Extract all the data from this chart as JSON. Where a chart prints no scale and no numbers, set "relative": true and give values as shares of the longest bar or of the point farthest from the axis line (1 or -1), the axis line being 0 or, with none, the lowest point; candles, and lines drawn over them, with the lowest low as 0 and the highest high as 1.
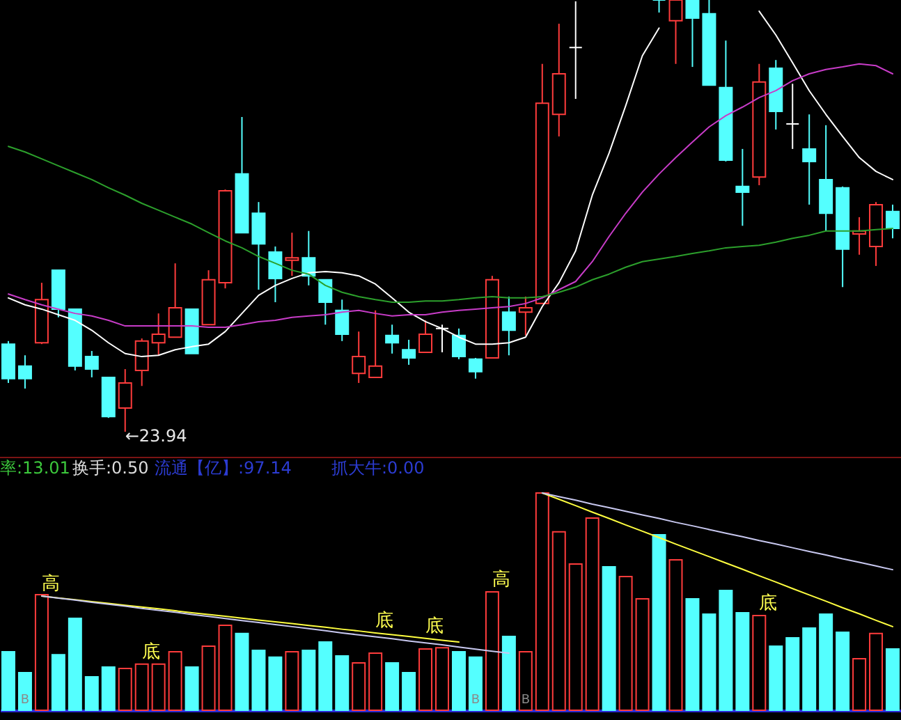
{
  "chart_data": [
    {
      "type": "candlestick",
      "relative": true,
      "categories": [
        null,
        null,
        null,
        null,
        null,
        null,
        null,
        null,
        null,
        null,
        null,
        null,
        null,
        null,
        null,
        null,
        null,
        null,
        null,
        null,
        null,
        null,
        null,
        null,
        null,
        null,
        null,
        null,
        null,
        null,
        null,
        null,
        null,
        null,
        null,
        null,
        null,
        null,
        null,
        null,
        null,
        null,
        null,
        null,
        null,
        null,
        null,
        null,
        null,
        null,
        null,
        null,
        null,
        null
      ],
      "ohlc": [
        [
          0.203,
          0.21,
          0.113,
          0.123
        ],
        [
          0.152,
          0.177,
          0.1,
          0.123
        ],
        [
          0.206,
          0.345,
          0.203,
          0.306
        ],
        [
          0.374,
          0.374,
          0.265,
          0.284
        ],
        [
          0.284,
          0.284,
          0.142,
          0.152
        ],
        [
          0.174,
          0.187,
          0.126,
          0.145
        ],
        [
          0.126,
          0.126,
          0.032,
          0.035
        ],
        [
          0.055,
          0.145,
          0,
          0.113
        ],
        [
          0.142,
          0.216,
          0.106,
          0.21
        ],
        [
          0.206,
          0.274,
          0.177,
          0.226
        ],
        [
          0.219,
          0.39,
          0.219,
          0.287
        ],
        [
          0.284,
          0.284,
          0.181,
          0.181
        ],
        [
          0.248,
          0.374,
          0.248,
          0.352
        ],
        [
          0.345,
          0.561,
          0.332,
          0.558
        ],
        [
          0.597,
          0.729,
          0.461,
          0.461
        ],
        [
          0.506,
          0.532,
          0.329,
          0.435
        ],
        [
          0.416,
          0.429,
          0.3,
          0.355
        ],
        [
          0.397,
          0.461,
          0.361,
          0.403
        ],
        [
          0.403,
          0.465,
          0.339,
          0.361
        ],
        [
          0.352,
          0.352,
          0.248,
          0.3
        ],
        [
          0.281,
          0.306,
          0.21,
          0.226
        ],
        [
          0.135,
          0.232,
          0.113,
          0.174
        ],
        [
          0.126,
          0.281,
          0.126,
          0.152
        ],
        [
          0.223,
          0.248,
          0.181,
          0.206
        ],
        [
          0.19,
          0.213,
          0.155,
          0.171
        ],
        [
          0.184,
          0.258,
          0.184,
          0.226
        ],
        [
          0.239,
          0.248,
          0.184,
          0.239
        ],
        [
          0.223,
          0.239,
          0.168,
          0.174
        ],
        [
          0.168,
          0.171,
          0.123,
          0.139
        ],
        [
          0.171,
          0.361,
          0.171,
          0.352
        ],
        [
          0.277,
          0.313,
          0.177,
          0.235
        ],
        [
          0.277,
          0.313,
          0.223,
          0.287
        ],
        [
          0.297,
          0.852,
          0.297,
          0.761
        ],
        [
          0.735,
          0.945,
          0.684,
          0.829
        ],
        [
          0.89,
          0.997,
          0.771,
          0.89
        ],
        null,
        null,
        null,
        null,
        [
          1,
          1,
          0.971,
          1
        ],
        [
          0.952,
          1,
          0.852,
          1
        ],
        [
          1,
          1,
          0.845,
          0.958
        ],
        [
          0.968,
          1,
          0.803,
          0.803
        ],
        [
          0.797,
          0.906,
          0.626,
          0.629
        ],
        [
          0.568,
          0.655,
          0.477,
          0.555
        ],
        [
          0.59,
          0.852,
          0.571,
          0.81
        ],
        [
          0.842,
          0.861,
          0.7,
          0.742
        ],
        [
          0.713,
          0.806,
          0.655,
          0.713
        ],
        [
          0.655,
          0.735,
          0.526,
          0.626
        ],
        [
          0.584,
          0.71,
          0.465,
          0.506
        ],
        [
          0.565,
          0.568,
          0.335,
          0.423
        ],
        [
          0.458,
          0.497,
          0.41,
          0.465
        ],
        [
          0.429,
          0.532,
          0.384,
          0.526
        ],
        [
          0.51,
          0.526,
          0.448,
          0.471
        ]
      ],
      "colors": [
        "#54ffff",
        "#54ffff",
        "#ff3c3c",
        "#54ffff",
        "#54ffff",
        "#54ffff",
        "#54ffff",
        "#ff3c3c",
        "#ff3c3c",
        "#ff3c3c",
        "#ff3c3c",
        "#54ffff",
        "#ff3c3c",
        "#ff3c3c",
        "#54ffff",
        "#54ffff",
        "#54ffff",
        "#ff3c3c",
        "#54ffff",
        "#54ffff",
        "#54ffff",
        "#ff3c3c",
        "#ff3c3c",
        "#54ffff",
        "#54ffff",
        "#ff3c3c",
        "#ffffff",
        "#54ffff",
        "#54ffff",
        "#ff3c3c",
        "#54ffff",
        "#ff3c3c",
        "#ff3c3c",
        "#ff3c3c",
        "#ffffff",
        null,
        null,
        null,
        null,
        "#54ffff",
        "#ff3c3c",
        "#54ffff",
        "#54ffff",
        "#54ffff",
        "#54ffff",
        "#ff3c3c",
        "#54ffff",
        "#ffffff",
        "#54ffff",
        "#54ffff",
        "#54ffff",
        "#ff3c3c",
        "#ff3c3c",
        "#54ffff"
      ],
      "series": [
        {
          "type": "line",
          "color": "#ffffff",
          "values": [
            0.31,
            0.294,
            0.284,
            0.271,
            0.258,
            0.235,
            0.206,
            0.181,
            0.174,
            0.177,
            0.19,
            0.197,
            0.203,
            0.232,
            0.274,
            0.316,
            0.339,
            0.355,
            0.368,
            0.371,
            0.368,
            0.361,
            0.342,
            0.31,
            0.277,
            0.255,
            0.239,
            0.219,
            0.203,
            0.203,
            0.206,
            0.219,
            0.29,
            0.345,
            0.419,
            0.548,
            0.645,
            0.755,
            0.871,
            0.935,
            null,
            null,
            null,
            null,
            null,
            0.974,
            0.919,
            0.855,
            0.79,
            0.735,
            0.684,
            0.635,
            0.603,
            0.584
          ]
        },
        {
          "type": "line",
          "color": "#c83cc8",
          "values": [
            0.319,
            0.306,
            0.294,
            0.284,
            0.274,
            0.268,
            0.258,
            0.245,
            0.245,
            0.245,
            0.245,
            0.245,
            0.242,
            0.242,
            0.248,
            0.255,
            0.258,
            0.265,
            0.268,
            0.271,
            0.277,
            0.281,
            0.274,
            0.268,
            0.271,
            0.271,
            0.277,
            0.281,
            0.284,
            0.287,
            0.29,
            0.297,
            0.31,
            0.329,
            0.348,
            0.394,
            0.452,
            0.506,
            0.555,
            0.597,
            0.635,
            0.671,
            0.706,
            0.732,
            0.752,
            0.774,
            0.79,
            0.813,
            0.829,
            0.839,
            0.845,
            0.852,
            0.848,
            0.829
          ]
        },
        {
          "type": "line",
          "color": "#2ca02c",
          "values": [
            0.661,
            0.648,
            0.632,
            0.616,
            0.6,
            0.584,
            0.565,
            0.548,
            0.529,
            0.513,
            0.497,
            0.481,
            0.461,
            0.442,
            0.426,
            0.406,
            0.39,
            0.374,
            0.365,
            0.339,
            0.323,
            0.313,
            0.306,
            0.3,
            0.3,
            0.303,
            0.303,
            0.306,
            0.31,
            0.313,
            0.31,
            0.31,
            0.313,
            0.323,
            0.335,
            0.352,
            0.365,
            0.381,
            0.394,
            0.4,
            0.406,
            0.413,
            0.419,
            0.426,
            0.429,
            0.432,
            0.439,
            0.448,
            0.455,
            0.465,
            0.465,
            0.465,
            0.468,
            0.471
          ]
        }
      ],
      "annotations": [
        "←23.94"
      ]
    },
    {
      "type": "bar",
      "relative": true,
      "categories": [
        null,
        null,
        null,
        null,
        null,
        null,
        null,
        null,
        null,
        null,
        null,
        null,
        null,
        null,
        null,
        null,
        null,
        null,
        null,
        null,
        null,
        null,
        null,
        null,
        null,
        null,
        null,
        null,
        null,
        null,
        null,
        null,
        null,
        null,
        null,
        null,
        null,
        null,
        null,
        null,
        null,
        null,
        null,
        null,
        null,
        null,
        null,
        null,
        null,
        null,
        null,
        null,
        null,
        null
      ],
      "series": [
        {
          "values": [
            0.269,
            0.173,
            0.532,
            0.256,
            0.423,
            0.154,
            0.199,
            0.192,
            0.212,
            0.212,
            0.269,
            0.199,
            0.295,
            0.391,
            0.353,
            0.276,
            0.244,
            0.269,
            0.276,
            0.314,
            0.25,
            0.218,
            0.263,
            0.218,
            0.173,
            0.282,
            0.288,
            0.269,
            0.244,
            0.545,
            0.34,
            0.269,
            1,
            0.821,
            0.673,
            0.885,
            0.66,
            0.615,
            0.513,
            0.808,
            0.692,
            0.513,
            0.442,
            0.551,
            0.449,
            0.436,
            0.295,
            0.333,
            0.378,
            0.442,
            0.359,
            0.237,
            0.353,
            0.282
          ],
          "colors": [
            "#54ffff",
            "#54ffff",
            "#ff3c3c",
            "#54ffff",
            "#54ffff",
            "#54ffff",
            "#54ffff",
            "#ff3c3c",
            "#ff3c3c",
            "#ff3c3c",
            "#ff3c3c",
            "#54ffff",
            "#ff3c3c",
            "#ff3c3c",
            "#54ffff",
            "#54ffff",
            "#54ffff",
            "#ff3c3c",
            "#54ffff",
            "#54ffff",
            "#54ffff",
            "#ff3c3c",
            "#ff3c3c",
            "#54ffff",
            "#54ffff",
            "#ff3c3c",
            "#ff3c3c",
            "#54ffff",
            "#54ffff",
            "#ff3c3c",
            "#54ffff",
            "#ff3c3c",
            "#ff3c3c",
            "#ff3c3c",
            "#ff3c3c",
            "#ff3c3c",
            "#54ffff",
            "#ff3c3c",
            "#ff3c3c",
            "#54ffff",
            "#ff3c3c",
            "#54ffff",
            "#54ffff",
            "#54ffff",
            "#54ffff",
            "#ff3c3c",
            "#54ffff",
            "#54ffff",
            "#54ffff",
            "#54ffff",
            "#54ffff",
            "#ff3c3c",
            "#ff3c3c",
            "#54ffff"
          ]
        },
        {
          "type": "line",
          "color": "#ffff40",
          "values": [
            null,
            null,
            0.526,
            0.517,
            0.509,
            0.5,
            0.492,
            0.483,
            0.475,
            0.467,
            0.458,
            0.449,
            0.441,
            0.433,
            0.424,
            0.415,
            0.407,
            0.399,
            0.39,
            0.382,
            0.373,
            0.365,
            0.356,
            0.348,
            0.34,
            0.331,
            0.322,
            0.314,
            null,
            null,
            null,
            null,
            1,
            0.971,
            0.942,
            0.912,
            0.883,
            0.853,
            0.824,
            0.795,
            0.765,
            0.736,
            0.707,
            0.678,
            0.649,
            0.619,
            0.59,
            0.56,
            0.531,
            0.502,
            0.472,
            0.444,
            0.414,
            0.385
          ]
        },
        {
          "type": "line",
          "color": "#c8c8f0",
          "values": [
            null,
            null,
            0.526,
            0.516,
            0.507,
            0.497,
            0.488,
            0.479,
            0.469,
            0.46,
            0.451,
            0.441,
            0.432,
            0.422,
            0.413,
            0.404,
            0.394,
            0.385,
            0.376,
            0.366,
            0.356,
            0.347,
            0.338,
            0.329,
            0.319,
            0.31,
            0.301,
            0.291,
            0.281,
            0.272,
            0.263,
            null,
            1,
            0.983,
            0.967,
            0.949,
            0.933,
            0.916,
            0.899,
            0.883,
            0.865,
            0.849,
            0.832,
            0.815,
            0.799,
            0.781,
            0.765,
            0.748,
            0.731,
            0.715,
            0.697,
            0.681,
            0.664,
            0.647
          ]
        }
      ],
      "annotations": [
        "率:13.01",
        "换手:0.50",
        "流通【亿】:97.14",
        "抓大牛:0.00",
        "高",
        "底",
        "底",
        "底",
        "高",
        "底",
        "B",
        "B",
        "B"
      ]
    }
  ]
}
